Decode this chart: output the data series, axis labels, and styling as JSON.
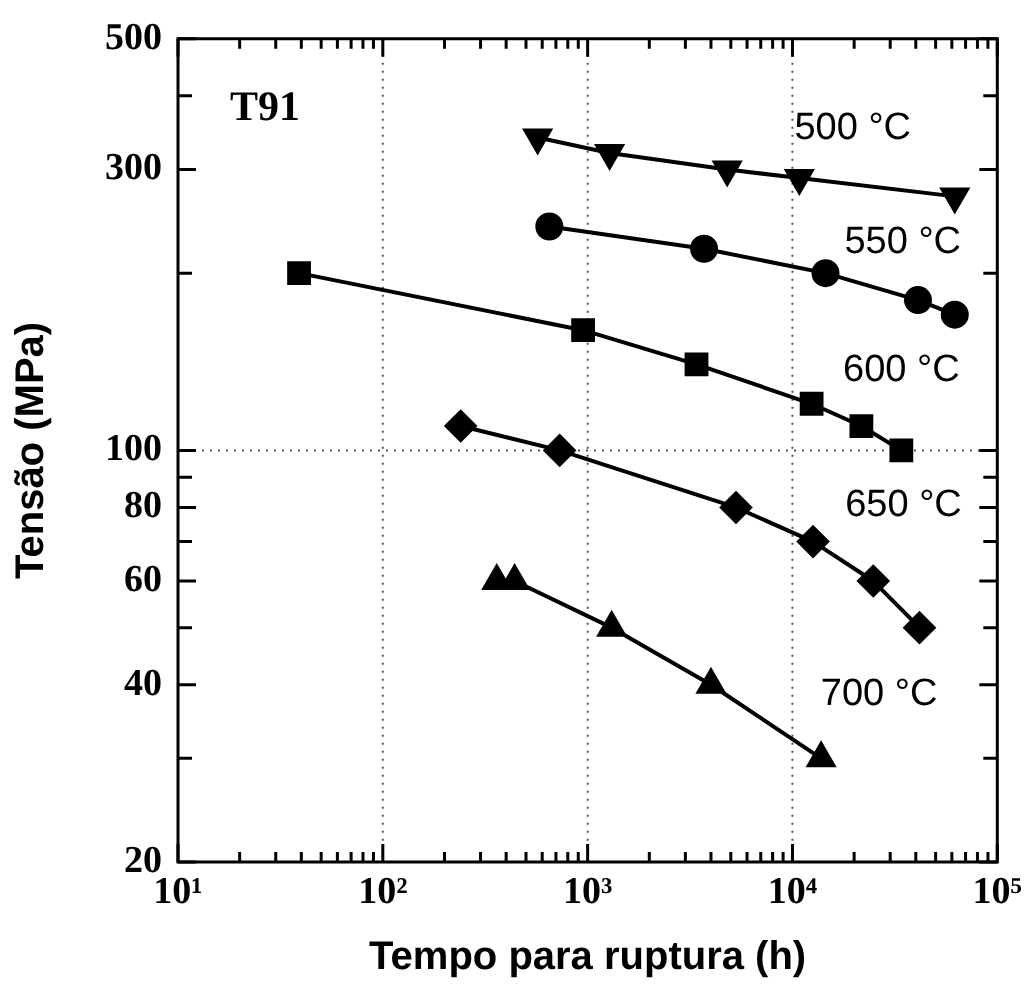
{
  "chart_data": {
    "type": "line",
    "title": "T91",
    "xlabel": "Tempo para ruptura (h)",
    "ylabel": "Tensão (MPa)",
    "log": "xy",
    "grid": false,
    "legend": "right",
    "line_style": "solid",
    "xlim": [
      10,
      100000
    ],
    "ylim": [
      20,
      500
    ],
    "xticks": [
      {
        "value": 10,
        "label": "10¹"
      },
      {
        "value": 20,
        "label": null
      },
      {
        "value": 30,
        "label": null
      },
      {
        "value": 40,
        "label": null
      },
      {
        "value": 50,
        "label": null
      },
      {
        "value": 60,
        "label": null
      },
      {
        "value": 70,
        "label": null
      },
      {
        "value": 80,
        "label": null
      },
      {
        "value": 90,
        "label": null
      },
      {
        "value": 100,
        "label": "10²"
      },
      {
        "value": 200,
        "label": null
      },
      {
        "value": 300,
        "label": null
      },
      {
        "value": 400,
        "label": null
      },
      {
        "value": 500,
        "label": null
      },
      {
        "value": 600,
        "label": null
      },
      {
        "value": 700,
        "label": null
      },
      {
        "value": 800,
        "label": null
      },
      {
        "value": 900,
        "label": null
      },
      {
        "value": 1000,
        "label": "10³"
      },
      {
        "value": 2000,
        "label": null
      },
      {
        "value": 3000,
        "label": null
      },
      {
        "value": 4000,
        "label": null
      },
      {
        "value": 5000,
        "label": null
      },
      {
        "value": 6000,
        "label": null
      },
      {
        "value": 7000,
        "label": null
      },
      {
        "value": 8000,
        "label": null
      },
      {
        "value": 9000,
        "label": null
      },
      {
        "value": 10000,
        "label": "10⁴"
      },
      {
        "value": 20000,
        "label": null
      },
      {
        "value": 30000,
        "label": null
      },
      {
        "value": 40000,
        "label": null
      },
      {
        "value": 50000,
        "label": null
      },
      {
        "value": 60000,
        "label": null
      },
      {
        "value": 70000,
        "label": null
      },
      {
        "value": 80000,
        "label": null
      },
      {
        "value": 90000,
        "label": null
      },
      {
        "value": 100000,
        "label": "10⁵"
      }
    ],
    "yticks": [
      20,
      {
        "value": 30,
        "label": null
      },
      40,
      {
        "value": 50,
        "label": null
      },
      60,
      {
        "value": 70,
        "label": null
      },
      80,
      {
        "value": 90,
        "label": null
      },
      100,
      {
        "value": 200,
        "label": null
      },
      300,
      {
        "value": 400,
        "label": null
      },
      500
    ],
    "ref_lines": [
      {
        "axis": "x",
        "value": 100,
        "color": "#555555",
        "line_style": "dotted"
      },
      {
        "axis": "x",
        "value": 1000,
        "color": "#555555",
        "line_style": "dotted"
      },
      {
        "axis": "x",
        "value": 10000,
        "color": "#555555",
        "line_style": "dotted"
      },
      {
        "axis": "y",
        "value": 100,
        "color": "#555555",
        "line_style": "dotted"
      }
    ],
    "series": [
      {
        "name": "500 °C",
        "color": "#000000",
        "marker": "triangle-down",
        "x": [
          570,
          1280,
          4800,
          10800,
          62000
        ],
        "values": [
          340,
          320,
          300,
          290,
          270
        ]
      },
      {
        "name": "550 °C",
        "color": "#000000",
        "marker": "circle",
        "x": [
          650,
          3700,
          14500,
          41000,
          62000
        ],
        "values": [
          240,
          220,
          200,
          180,
          170
        ]
      },
      {
        "name": "600 °C",
        "color": "#000000",
        "marker": "square",
        "x": [
          39,
          950,
          3400,
          12400,
          21700,
          34000
        ],
        "values": [
          200,
          160,
          140,
          120,
          110,
          100
        ]
      },
      {
        "name": "650 °C",
        "color": "#000000",
        "marker": "diamond",
        "x": [
          240,
          730,
          5300,
          12600,
          24800,
          41700
        ],
        "values": [
          110,
          100,
          80,
          70,
          60,
          50
        ]
      },
      {
        "name": "700 °C",
        "color": "#000000",
        "marker": "triangle",
        "x": [
          360,
          440,
          1310,
          4000,
          13800
        ],
        "values": [
          60,
          60,
          50,
          40,
          30
        ]
      }
    ]
  }
}
